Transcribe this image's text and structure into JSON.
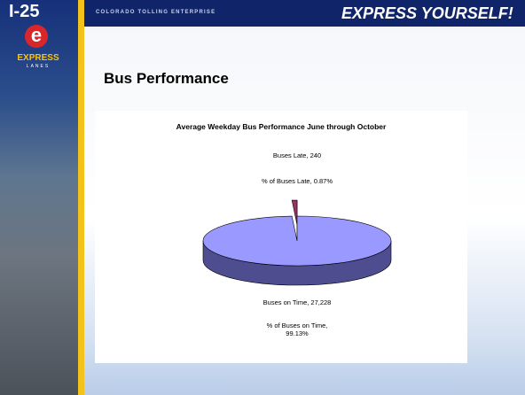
{
  "header": {
    "logo_title": "I-25",
    "logo_letter": "e",
    "logo_sub": "EXPRESS",
    "logo_sub2": "LANES",
    "org": "COLORADO TOLLING ENTERPRISE",
    "slogan": "EXPRESS YOURSELF!"
  },
  "slide_title": "Bus Performance",
  "chart_data": {
    "type": "pie",
    "title": "Average Weekday Bus Performance  June through October",
    "values": [
      240,
      27228
    ],
    "value_labels": [
      "Buses Late, 240",
      "Buses on Time, 27,228"
    ],
    "percent_labels": [
      "% of Buses Late, 0.87%",
      "% of Buses on Time, 99.13%"
    ],
    "colors": [
      "#993366",
      "#9999ff"
    ],
    "side_colors": [
      "#5a1f3c",
      "#4d4d8f"
    ]
  }
}
